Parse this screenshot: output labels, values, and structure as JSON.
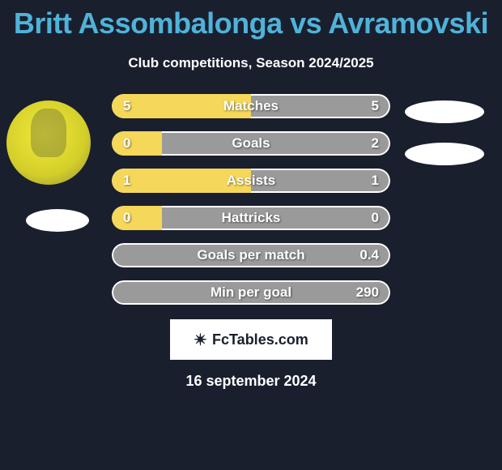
{
  "title": "Britt Assombalonga vs Avramovski",
  "subtitle": "Club competitions, Season 2024/2025",
  "date": "16 september 2024",
  "logo": {
    "text": "FcTables.com",
    "icon": "✴"
  },
  "colors": {
    "background": "#1a1f2e",
    "title": "#4fb3d9",
    "bar_left_fill": "#f5d75a",
    "bar_base": "#9a9a9a",
    "bar_outline": "#ffffff",
    "text": "#ffffff"
  },
  "bars": [
    {
      "label": "Matches",
      "left_val": "5",
      "right_val": "5",
      "left_pct": 50,
      "right_pct": 0,
      "bg": "#9a9a9a"
    },
    {
      "label": "Goals",
      "left_val": "0",
      "right_val": "2",
      "left_pct": 18,
      "right_pct": 0,
      "bg": "#9a9a9a"
    },
    {
      "label": "Assists",
      "left_val": "1",
      "right_val": "1",
      "left_pct": 50,
      "right_pct": 0,
      "bg": "#9a9a9a"
    },
    {
      "label": "Hattricks",
      "left_val": "0",
      "right_val": "0",
      "left_pct": 18,
      "right_pct": 0,
      "bg": "#9a9a9a"
    },
    {
      "label": "Goals per match",
      "left_val": "",
      "right_val": "0.4",
      "left_pct": 0,
      "right_pct": 0,
      "bg": "#9a9a9a"
    },
    {
      "label": "Min per goal",
      "left_val": "",
      "right_val": "290",
      "left_pct": 0,
      "right_pct": 0,
      "bg": "#9a9a9a"
    }
  ]
}
